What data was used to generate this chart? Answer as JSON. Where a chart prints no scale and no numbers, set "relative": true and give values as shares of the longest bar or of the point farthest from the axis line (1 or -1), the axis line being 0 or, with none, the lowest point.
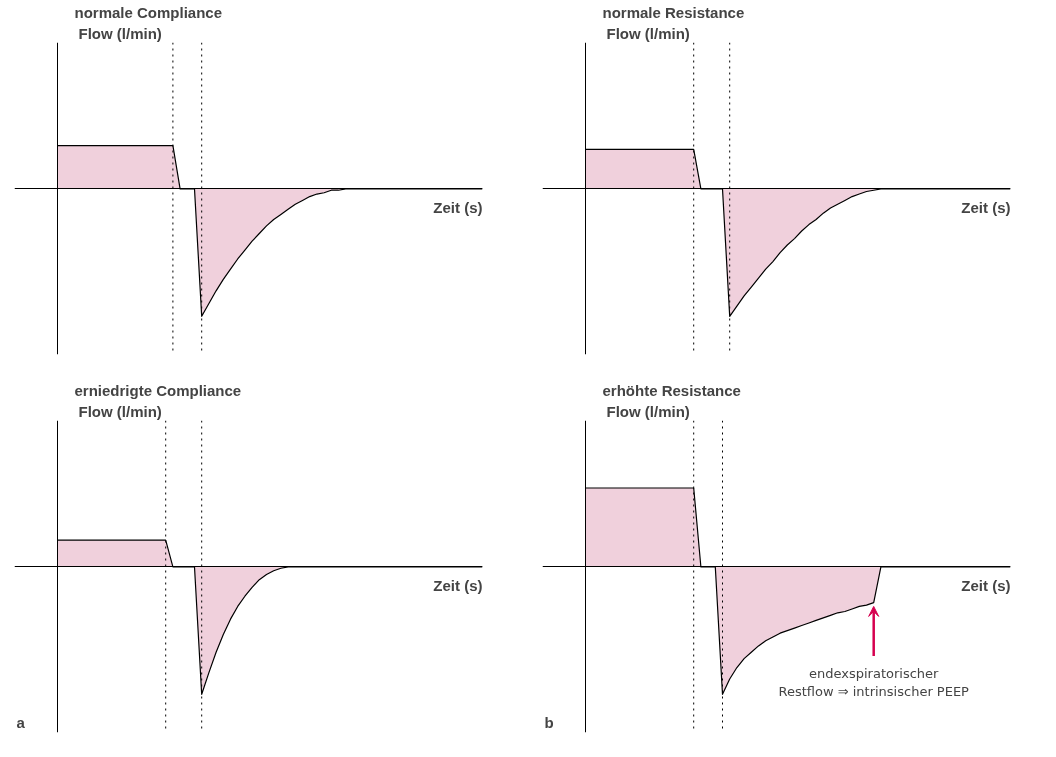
{
  "chart_data": [
    {
      "type": "area",
      "relative": true,
      "title": "normale Compliance",
      "ylabel": "Flow (l/min)",
      "xlabel": "Zeit (s)",
      "color": "#f0d0dc",
      "categories": [
        null,
        null,
        null,
        null,
        null,
        null,
        null,
        null,
        null,
        null,
        null,
        null,
        null,
        null,
        null,
        null,
        null,
        null,
        null,
        null,
        null,
        null,
        null,
        null,
        null,
        null,
        null,
        null,
        null,
        null,
        null,
        null,
        null,
        null,
        null,
        null,
        null,
        null,
        null,
        null,
        null,
        null,
        null,
        null,
        null,
        null,
        null,
        null,
        null,
        null,
        null,
        null,
        null,
        null,
        null,
        null,
        null,
        null,
        null,
        null
      ],
      "values": [
        0.34,
        0.34,
        0.34,
        0.34,
        0.34,
        0.34,
        0.34,
        0.34,
        0.34,
        0.34,
        0.34,
        0.34,
        0.34,
        0.34,
        0.34,
        0.34,
        0.34,
        0,
        0,
        0,
        -1,
        -0.9,
        -0.8,
        -0.71,
        -0.63,
        -0.55,
        -0.48,
        -0.41,
        -0.35,
        -0.29,
        -0.24,
        -0.2,
        -0.16,
        -0.12,
        -0.09,
        -0.06,
        -0.04,
        -0.03,
        -0.01,
        -0.01,
        0,
        0,
        0,
        0,
        0,
        0,
        0,
        0,
        0,
        0,
        0,
        0,
        0,
        0,
        0,
        0,
        0,
        0,
        0,
        0
      ]
    },
    {
      "type": "area",
      "relative": true,
      "title": "normale Resistance",
      "ylabel": "Flow (l/min)",
      "xlabel": "Zeit (s)",
      "color": "#f0d0dc",
      "categories": [
        null,
        null,
        null,
        null,
        null,
        null,
        null,
        null,
        null,
        null,
        null,
        null,
        null,
        null,
        null,
        null,
        null,
        null,
        null,
        null,
        null,
        null,
        null,
        null,
        null,
        null,
        null,
        null,
        null,
        null,
        null,
        null,
        null,
        null,
        null,
        null,
        null,
        null,
        null,
        null,
        null,
        null,
        null,
        null,
        null,
        null,
        null,
        null,
        null,
        null,
        null,
        null,
        null,
        null,
        null,
        null,
        null,
        null,
        null,
        null
      ],
      "values": [
        0.31,
        0.31,
        0.31,
        0.31,
        0.31,
        0.31,
        0.31,
        0.31,
        0.31,
        0.31,
        0.31,
        0.31,
        0.31,
        0.31,
        0.31,
        0.31,
        0,
        0,
        0,
        0,
        -1,
        -0.92,
        -0.84,
        -0.77,
        -0.7,
        -0.63,
        -0.57,
        -0.5,
        -0.44,
        -0.39,
        -0.33,
        -0.28,
        -0.24,
        -0.19,
        -0.15,
        -0.12,
        -0.09,
        -0.06,
        -0.04,
        -0.02,
        -0.01,
        0,
        0,
        0,
        0,
        0,
        0,
        0,
        0,
        0,
        0,
        0,
        0,
        0,
        0,
        0,
        0,
        0,
        0,
        0
      ]
    },
    {
      "type": "area",
      "relative": true,
      "title": "erniedrigte Compliance",
      "ylabel": "Flow (l/min)",
      "xlabel": "Zeit (s)",
      "color": "#f0d0dc",
      "categories": [
        null,
        null,
        null,
        null,
        null,
        null,
        null,
        null,
        null,
        null,
        null,
        null,
        null,
        null,
        null,
        null,
        null,
        null,
        null,
        null,
        null,
        null,
        null,
        null,
        null,
        null,
        null,
        null,
        null,
        null,
        null,
        null,
        null,
        null,
        null,
        null,
        null,
        null,
        null,
        null,
        null,
        null,
        null,
        null,
        null,
        null,
        null,
        null,
        null,
        null,
        null,
        null,
        null,
        null,
        null,
        null,
        null,
        null,
        null,
        null
      ],
      "values": [
        0.21,
        0.21,
        0.21,
        0.21,
        0.21,
        0.21,
        0.21,
        0.21,
        0.21,
        0.21,
        0.21,
        0.21,
        0.21,
        0.21,
        0.21,
        0.21,
        0,
        0,
        0,
        0,
        -1,
        -0.83,
        -0.67,
        -0.53,
        -0.41,
        -0.31,
        -0.23,
        -0.16,
        -0.1,
        -0.06,
        -0.03,
        -0.01,
        0,
        0,
        0,
        0,
        0,
        0,
        0,
        0,
        0,
        0,
        0,
        0,
        0,
        0,
        0,
        0,
        0,
        0,
        0,
        0,
        0,
        0,
        0,
        0,
        0,
        0,
        0,
        0
      ],
      "annotations": [
        "a"
      ]
    },
    {
      "type": "area",
      "relative": true,
      "title": "erhöhte Resistance",
      "ylabel": "Flow (l/min)",
      "xlabel": "Zeit (s)",
      "color": "#f0d0dc",
      "categories": [
        null,
        null,
        null,
        null,
        null,
        null,
        null,
        null,
        null,
        null,
        null,
        null,
        null,
        null,
        null,
        null,
        null,
        null,
        null,
        null,
        null,
        null,
        null,
        null,
        null,
        null,
        null,
        null,
        null,
        null,
        null,
        null,
        null,
        null,
        null,
        null,
        null,
        null,
        null,
        null,
        null,
        null,
        null,
        null,
        null,
        null,
        null,
        null,
        null,
        null,
        null,
        null,
        null,
        null,
        null,
        null,
        null,
        null,
        null,
        null
      ],
      "values": [
        0.62,
        0.62,
        0.62,
        0.62,
        0.62,
        0.62,
        0.62,
        0.62,
        0.62,
        0.62,
        0.62,
        0.62,
        0.62,
        0.62,
        0.62,
        0.62,
        0,
        0,
        0,
        -1,
        -0.88,
        -0.79,
        -0.72,
        -0.67,
        -0.62,
        -0.58,
        -0.55,
        -0.52,
        -0.5,
        -0.48,
        -0.46,
        -0.44,
        -0.42,
        -0.4,
        -0.38,
        -0.36,
        -0.35,
        -0.33,
        -0.31,
        -0.3,
        -0.28,
        0,
        0,
        0,
        0,
        0,
        0,
        0,
        0,
        0,
        0,
        0,
        0,
        0,
        0,
        0,
        0,
        0,
        0,
        0
      ],
      "annotations": [
        "b",
        {
          "text": "endexspiratorischer\nRestflow ⇒ intrinsischer PEEP",
          "y": -0.28
        }
      ]
    }
  ]
}
